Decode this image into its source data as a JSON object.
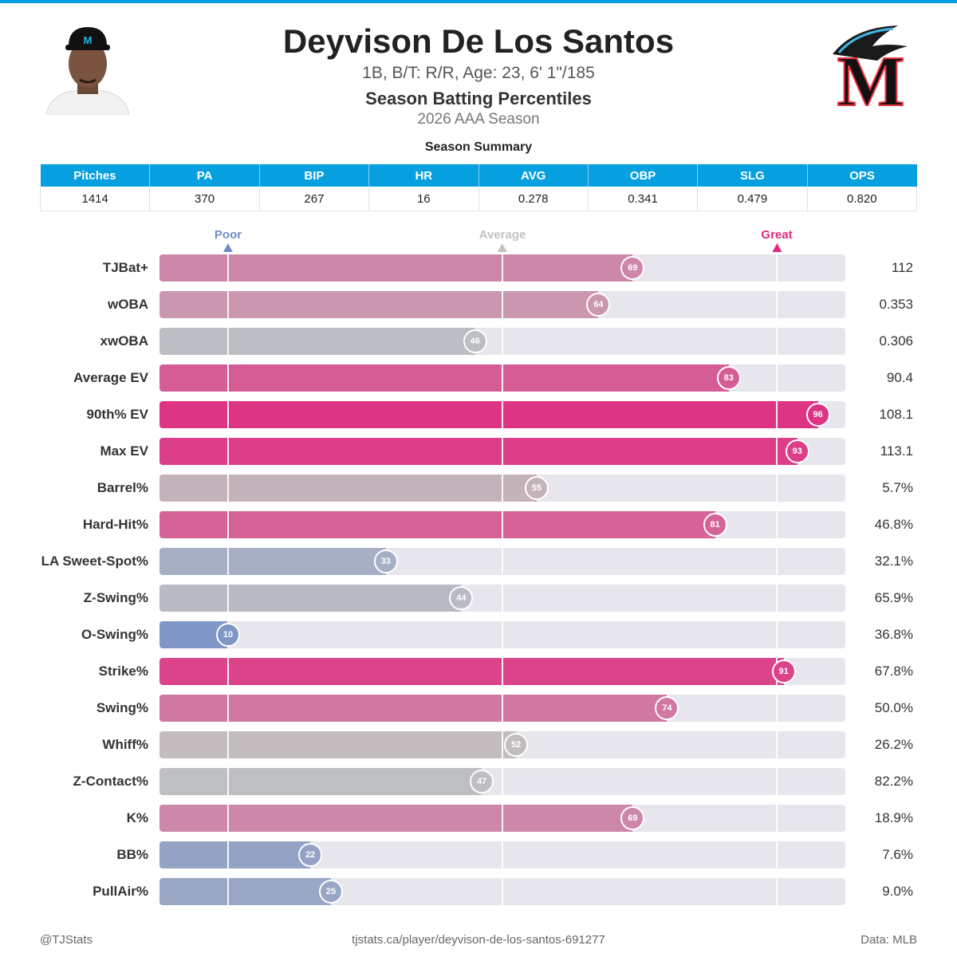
{
  "header": {
    "name": "Deyvison De Los Santos",
    "bio": "1B, B/T: R/R, Age: 23, 6' 1\"/185",
    "subtitle": "Season Batting Percentiles",
    "season": "2026 AAA Season",
    "team_logo_letter": "M"
  },
  "summary": {
    "title": "Season Summary",
    "headers": [
      "Pitches",
      "PA",
      "BIP",
      "HR",
      "AVG",
      "OBP",
      "SLG",
      "OPS"
    ],
    "values": [
      "1414",
      "370",
      "267",
      "16",
      "0.278",
      "0.341",
      "0.479",
      "0.820"
    ]
  },
  "chart_data": {
    "type": "bar",
    "orientation": "horizontal",
    "xlim": [
      0,
      100
    ],
    "reference_markers": [
      {
        "label": "Poor",
        "value": 10,
        "color": "#6f8bc7"
      },
      {
        "label": "Average",
        "value": 50,
        "color": "#c2c2c2"
      },
      {
        "label": "Great",
        "value": 90,
        "color": "#e0287f"
      }
    ],
    "metrics": [
      {
        "name": "TJBat+",
        "percentile": 69,
        "value": "112"
      },
      {
        "name": "wOBA",
        "percentile": 64,
        "value": "0.353"
      },
      {
        "name": "xwOBA",
        "percentile": 46,
        "value": "0.306"
      },
      {
        "name": "Average EV",
        "percentile": 83,
        "value": "90.4"
      },
      {
        "name": "90th% EV",
        "percentile": 96,
        "value": "108.1"
      },
      {
        "name": "Max EV",
        "percentile": 93,
        "value": "113.1"
      },
      {
        "name": "Barrel%",
        "percentile": 55,
        "value": "5.7%"
      },
      {
        "name": "Hard-Hit%",
        "percentile": 81,
        "value": "46.8%"
      },
      {
        "name": "LA Sweet-Spot%",
        "percentile": 33,
        "value": "32.1%"
      },
      {
        "name": "Z-Swing%",
        "percentile": 44,
        "value": "65.9%"
      },
      {
        "name": "O-Swing%",
        "percentile": 10,
        "value": "36.8%"
      },
      {
        "name": "Strike%",
        "percentile": 91,
        "value": "67.8%"
      },
      {
        "name": "Swing%",
        "percentile": 74,
        "value": "50.0%"
      },
      {
        "name": "Whiff%",
        "percentile": 52,
        "value": "26.2%"
      },
      {
        "name": "Z-Contact%",
        "percentile": 47,
        "value": "82.2%"
      },
      {
        "name": "K%",
        "percentile": 69,
        "value": "18.9%"
      },
      {
        "name": "BB%",
        "percentile": 22,
        "value": "7.6%"
      },
      {
        "name": "PullAir%",
        "percentile": 25,
        "value": "9.0%"
      }
    ]
  },
  "colors": {
    "accent": "#069fe0",
    "poor": "#6f8bc7",
    "average": "#c2c2c2",
    "great": "#e0287f"
  },
  "footer": {
    "left": "@TJStats",
    "center": "tjstats.ca/player/deyvison-de-los-santos-691277",
    "right": "Data: MLB"
  }
}
